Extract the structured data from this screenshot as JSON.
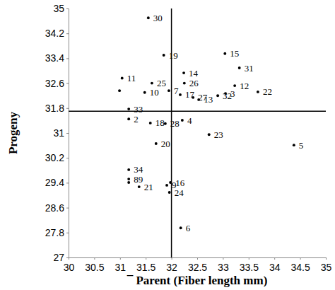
{
  "chart_data": {
    "type": "scatter",
    "x_label": "¯ Parent (Fiber length mm)",
    "y_label": "Progeny",
    "x": [
      31.55,
      31.85,
      33.04,
      33.32,
      32.24,
      31.04,
      32.25,
      31.62,
      33.23,
      33.68,
      33.05,
      31.48,
      31.95,
      32.17,
      32.42,
      32.53,
      32.9,
      30.99,
      31.17,
      31.17,
      31.59,
      31.88,
      32.21,
      32.73,
      34.38,
      31.7,
      31.17,
      31.17,
      31.17,
      31.37,
      31.91,
      31.98,
      31.96,
      32.18
    ],
    "values": [
      34.7,
      33.5,
      33.55,
      33.09,
      32.93,
      32.76,
      32.6,
      32.6,
      32.52,
      32.32,
      32.27,
      32.3,
      32.36,
      32.23,
      32.14,
      32.07,
      32.2,
      32.36,
      31.77,
      31.45,
      31.32,
      31.3,
      31.41,
      30.95,
      30.61,
      30.66,
      29.82,
      29.52,
      29.41,
      29.27,
      29.32,
      29.41,
      29.09,
      27.95
    ],
    "point_labels": [
      "30",
      "19",
      "15",
      "31",
      "14",
      "11",
      "26",
      "25",
      "12",
      "22",
      "3",
      "10",
      "7",
      "17",
      "27",
      "13",
      "32",
      null,
      "33",
      "2",
      "18",
      "28",
      "4",
      "23",
      "5",
      "20",
      "34",
      "89",
      null,
      "21",
      "9",
      "16",
      "24",
      "6"
    ],
    "color": "#000000",
    "marker": "circle",
    "xline": 32,
    "yline": 31.7,
    "xlim": [
      30,
      35
    ],
    "xticks": [
      30,
      30.5,
      31,
      31.5,
      32,
      32.5,
      33,
      33.5,
      34,
      34.5,
      35
    ],
    "ylim": [
      27,
      35
    ],
    "yticks": [
      27,
      27.8,
      28.6,
      29.4,
      30.2,
      31,
      31.8,
      32.6,
      33.4,
      34.2,
      35
    ],
    "grid": false
  }
}
